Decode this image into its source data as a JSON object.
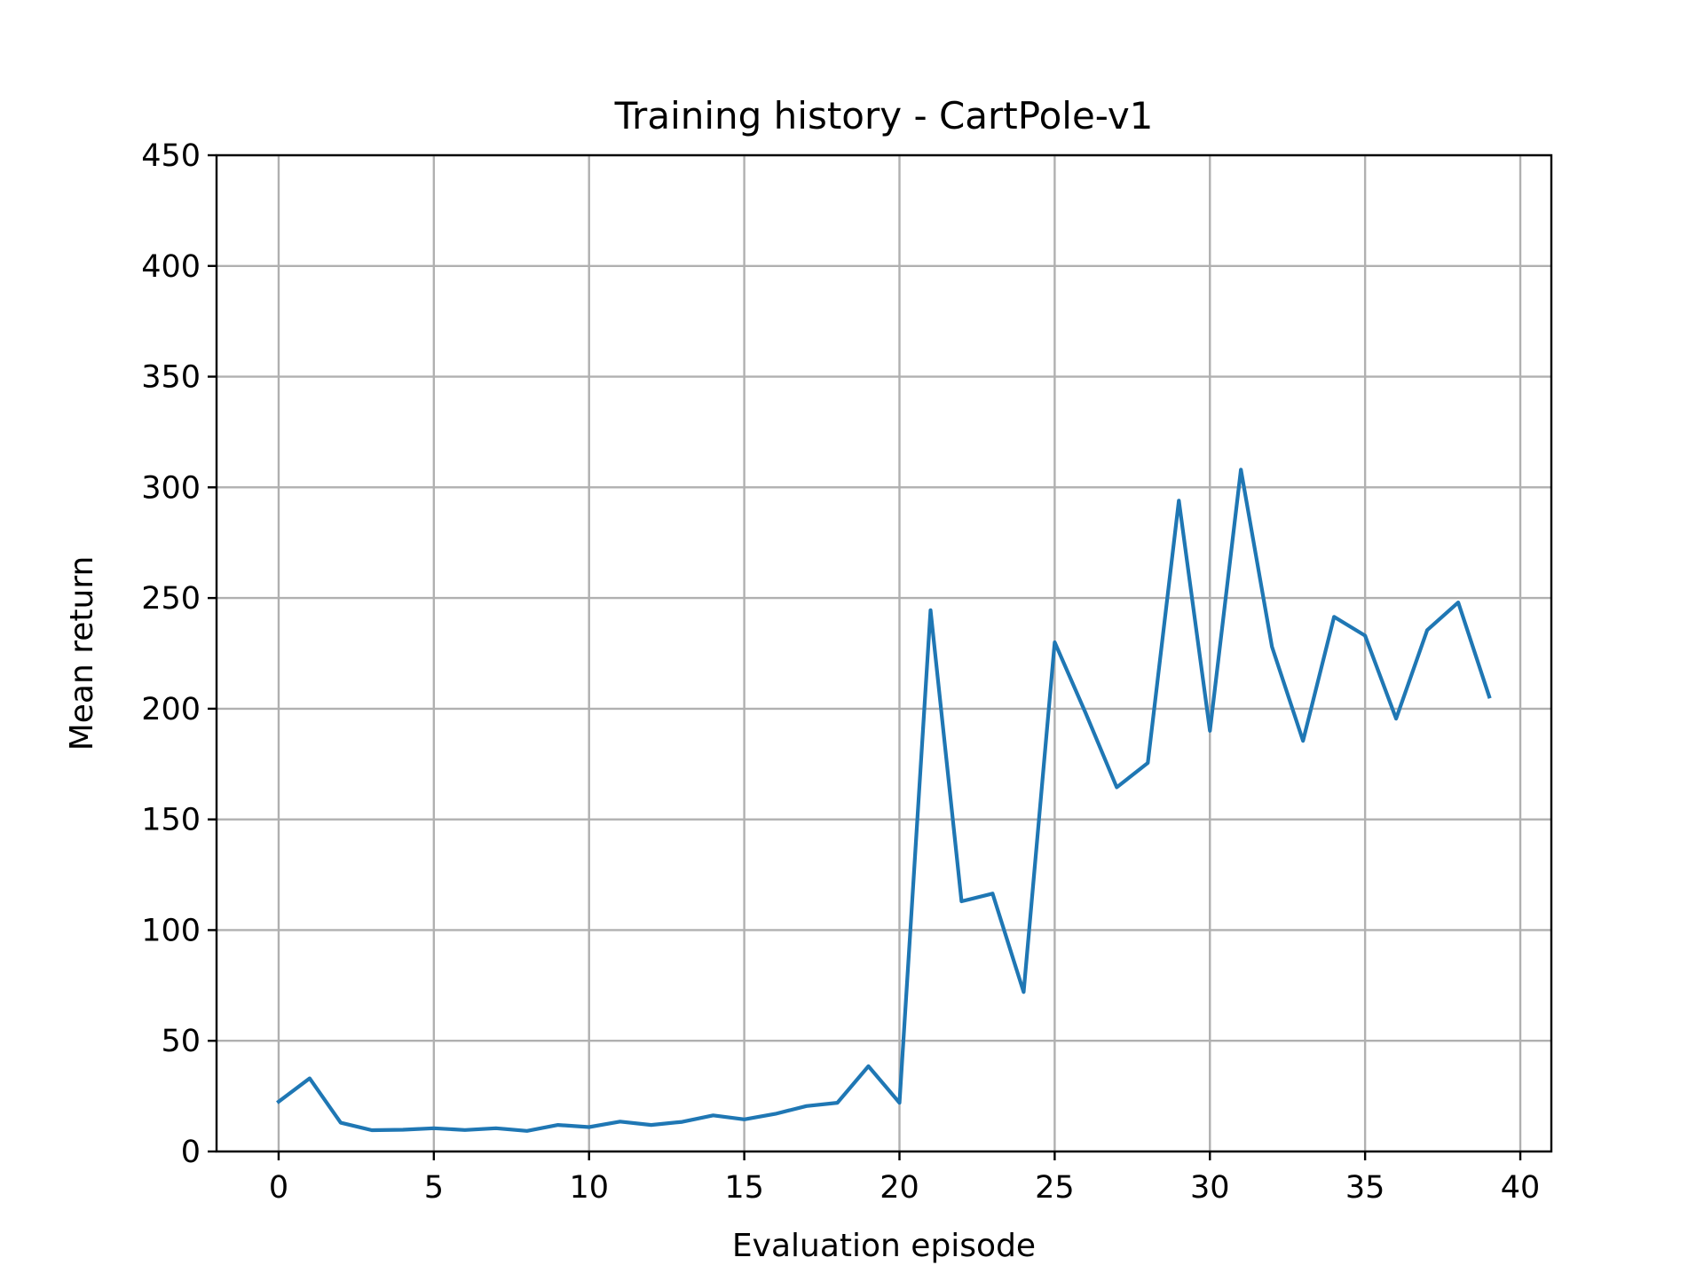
{
  "chart_data": {
    "type": "line",
    "title": "Training history - CartPole-v1",
    "xlabel": "Evaluation episode",
    "ylabel": "Mean return",
    "xlim": [
      -2,
      41
    ],
    "ylim": [
      0,
      450
    ],
    "xticks": [
      0,
      5,
      10,
      15,
      20,
      25,
      30,
      35,
      40
    ],
    "yticks": [
      0,
      50,
      100,
      150,
      200,
      250,
      300,
      350,
      400,
      450
    ],
    "grid": true,
    "legend": "none",
    "series": [
      {
        "color": "#1f77b4",
        "x": [
          0,
          1,
          2,
          3,
          4,
          5,
          6,
          7,
          8,
          9,
          10,
          11,
          12,
          13,
          14,
          15,
          16,
          17,
          18,
          19,
          20,
          21,
          22,
          23,
          24,
          25,
          26,
          27,
          28,
          29,
          30,
          31,
          32,
          33,
          34,
          35,
          36,
          37,
          38,
          39
        ],
        "y": [
          22.5,
          33,
          13,
          9.6,
          9.8,
          10.5,
          9.7,
          10.5,
          9.3,
          12,
          11,
          13.5,
          12,
          13.4,
          16.3,
          14.5,
          17,
          20.5,
          22,
          38.5,
          22,
          244.5,
          113,
          116.5,
          72,
          230,
          198,
          164.5,
          175.5,
          294,
          190,
          308,
          228,
          185.5,
          241.5,
          233,
          195.5,
          235.5,
          248,
          205.5
        ]
      }
    ]
  }
}
